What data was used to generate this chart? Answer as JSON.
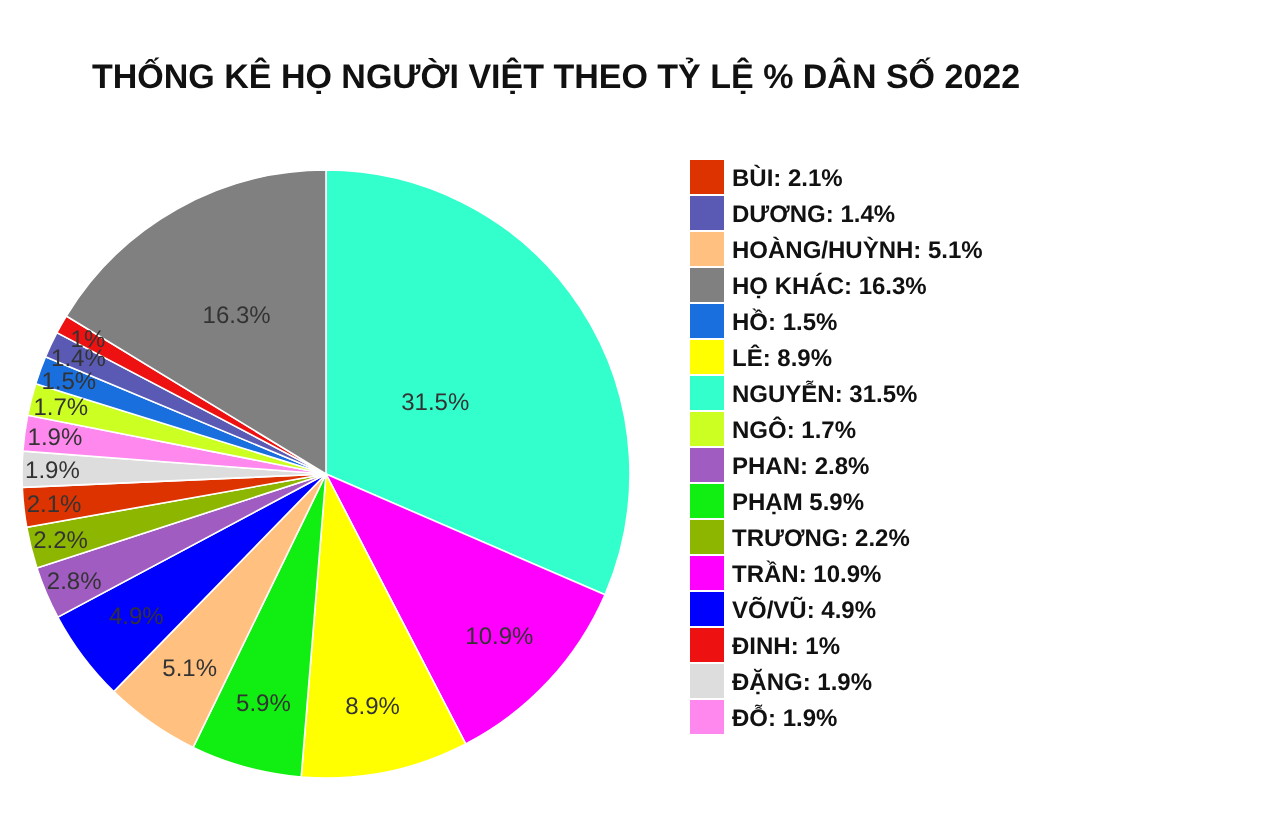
{
  "chart_data": {
    "type": "pie",
    "title": "THỐNG KÊ HỌ NGƯỜI VIỆT THEO TỶ LỆ % DÂN SỐ 2022",
    "categories": [
      "NGUYỄN: 31.5%",
      "TRẦN: 10.9%",
      "LÊ: 8.9%",
      "PHẠM 5.9%",
      "HOÀNG/HUỲNH: 5.1%",
      "VÕ/VŨ: 4.9%",
      "PHAN: 2.8%",
      "TRƯƠNG: 2.2%",
      "BÙI: 2.1%",
      "ĐẶNG: 1.9%",
      "ĐỖ: 1.9%",
      "NGÔ: 1.7%",
      "HỒ: 1.5%",
      "DƯƠNG: 1.4%",
      "ĐINH: 1%",
      "HỌ KHÁC: 16.3%"
    ],
    "values": [
      31.5,
      10.9,
      8.9,
      5.9,
      5.1,
      4.9,
      2.8,
      2.2,
      2.1,
      1.9,
      1.9,
      1.7,
      1.5,
      1.4,
      1,
      16.3
    ],
    "colors": [
      "#33ffcc",
      "#ff00ff",
      "#ffff00",
      "#11ee11",
      "#ffc080",
      "#0000ff",
      "#a05cc0",
      "#8db600",
      "#dd3300",
      "#dddddd",
      "#ff88ee",
      "#ccff22",
      "#1a6fdf",
      "#5a5ab4",
      "#ee1111",
      "#808080"
    ],
    "value_labels": [
      "31.5%",
      "10.9%",
      "8.9%",
      "5.9%",
      "5.1%",
      "4.9%",
      "2.8%",
      "2.2%",
      "2.1%",
      "1.9%",
      "1.9%",
      "1.7%",
      "1.5%",
      "1.4%",
      "1%",
      "16.3%"
    ],
    "legend": "right"
  }
}
